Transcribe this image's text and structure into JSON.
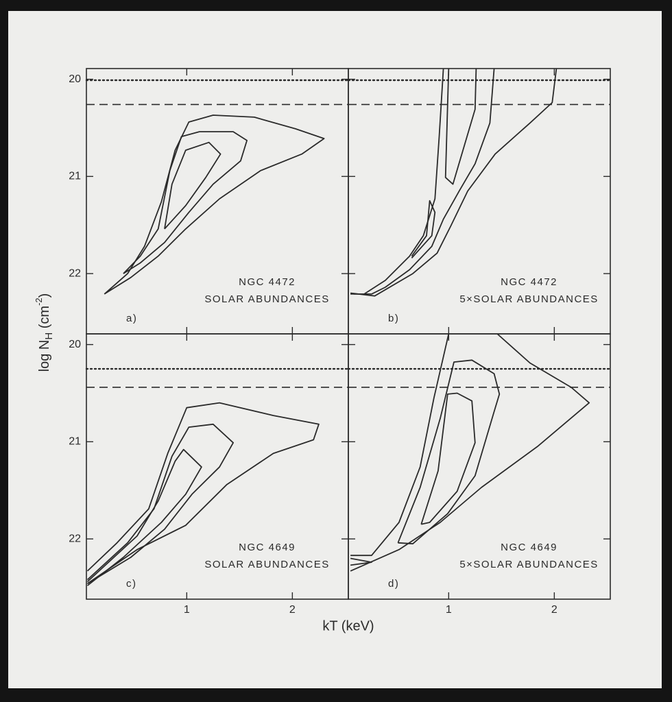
{
  "figure": {
    "xlabel": "kT (keV)",
    "ylabel": {
      "main": "log N",
      "sub": "H",
      "open": " (cm",
      "sup": "-2",
      "close": ")"
    }
  },
  "chart_data": [
    {
      "type": "contour",
      "panel_label": "a)",
      "annotation": [
        "NGC 4472",
        "SOLAR ABUNDANCES"
      ],
      "xlim": [
        0.05,
        2.53
      ],
      "ylim": [
        22.62,
        19.89
      ],
      "xticks": [
        1,
        2
      ],
      "yticks": [
        20,
        21,
        22
      ],
      "show_xtick_labels": false,
      "show_ytick_labels": true,
      "color": "#2a2a2a",
      "reference_lines": [
        {
          "y": 20.01,
          "style": "dotted"
        },
        {
          "y": 20.26,
          "style": "dashed"
        }
      ],
      "contours": [
        {
          "x": [
            0.22,
            0.44,
            0.6,
            0.76,
            0.89,
            1.02,
            1.25,
            1.64,
            2.03,
            2.3,
            2.09,
            1.7,
            1.31,
            0.99,
            0.73,
            0.47,
            0.22
          ],
          "y": [
            22.21,
            22.0,
            21.72,
            21.26,
            20.73,
            20.44,
            20.37,
            20.39,
            20.51,
            20.61,
            20.77,
            20.94,
            21.23,
            21.54,
            21.82,
            22.04,
            22.21
          ]
        },
        {
          "x": [
            0.4,
            0.56,
            0.73,
            0.84,
            0.95,
            1.12,
            1.44,
            1.57,
            1.51,
            1.25,
            1.02,
            0.79,
            0.56,
            0.4
          ],
          "y": [
            22.0,
            21.82,
            21.54,
            20.94,
            20.59,
            20.54,
            20.54,
            20.63,
            20.84,
            21.08,
            21.37,
            21.68,
            21.89,
            22.0
          ]
        },
        {
          "x": [
            0.79,
            0.86,
            0.99,
            1.21,
            1.32,
            1.18,
            0.99,
            0.79
          ],
          "y": [
            21.54,
            21.08,
            20.73,
            20.65,
            20.77,
            21.01,
            21.3,
            21.54
          ]
        }
      ]
    },
    {
      "type": "contour",
      "panel_label": "b)",
      "annotation": [
        "NGC 4472",
        "5×SOLAR ABUNDANCES"
      ],
      "xlim": [
        0.05,
        2.53
      ],
      "ylim": [
        22.62,
        19.89
      ],
      "xticks": [
        1,
        2
      ],
      "yticks": [
        20,
        21,
        22
      ],
      "show_xtick_labels": false,
      "show_ytick_labels": false,
      "color": "#2a2a2a",
      "reference_lines": [
        {
          "y": 20.01,
          "style": "dotted"
        },
        {
          "y": 20.26,
          "style": "dashed"
        }
      ],
      "contours": [
        {
          "x": [
            0.07,
            0.3,
            0.66,
            0.89,
            1.02,
            1.18,
            1.44,
            1.77,
            1.98,
            2.02
          ],
          "y": [
            22.2,
            22.23,
            22.0,
            21.79,
            21.51,
            21.15,
            20.77,
            20.45,
            20.24,
            19.89
          ]
        },
        {
          "x": [
            1.43,
            1.39,
            1.25,
            1.1,
            0.95,
            0.84,
            0.63,
            0.4,
            0.27,
            0.1
          ],
          "y": [
            19.89,
            20.45,
            20.87,
            21.15,
            21.44,
            21.72,
            21.96,
            22.14,
            22.21,
            22.21
          ]
        },
        {
          "x": [
            0.95,
            0.91,
            0.87,
            0.76,
            0.63,
            0.4,
            0.2,
            0.07
          ],
          "y": [
            19.89,
            20.59,
            21.23,
            21.61,
            21.82,
            22.07,
            22.21,
            22.21
          ]
        },
        {
          "x": [
            1.0,
            0.97,
            1.04,
            1.25,
            1.26
          ],
          "y": [
            19.89,
            21.01,
            21.08,
            20.31,
            19.89
          ]
        },
        {
          "x": [
            0.65,
            0.79,
            0.82,
            0.87,
            0.84,
            0.65
          ],
          "y": [
            21.82,
            21.61,
            21.25,
            21.37,
            21.61,
            21.84
          ]
        }
      ]
    },
    {
      "type": "contour",
      "panel_label": "c)",
      "annotation": [
        "NGC 4649",
        "SOLAR ABUNDANCES"
      ],
      "xlim": [
        0.05,
        2.53
      ],
      "ylim": [
        22.62,
        19.89
      ],
      "xticks": [
        1,
        2
      ],
      "yticks": [
        20,
        21,
        22
      ],
      "show_xtick_labels": true,
      "show_ytick_labels": true,
      "color": "#2a2a2a",
      "reference_lines": [
        {
          "y": 20.25,
          "style": "dotted"
        },
        {
          "y": 20.44,
          "style": "dashed"
        }
      ],
      "contours": [
        {
          "x": [
            0.06,
            0.34,
            0.64,
            0.82,
            1.0,
            1.31,
            1.82,
            2.25,
            2.2,
            1.82,
            1.38,
            0.99,
            0.53,
            0.06
          ],
          "y": [
            22.33,
            22.04,
            21.69,
            21.12,
            20.65,
            20.6,
            20.73,
            20.82,
            20.98,
            21.12,
            21.44,
            21.86,
            22.11,
            22.46
          ]
        },
        {
          "x": [
            0.06,
            0.44,
            0.69,
            0.86,
            1.02,
            1.25,
            1.44,
            1.31,
            1.05,
            0.79,
            0.47,
            0.06
          ],
          "y": [
            22.42,
            22.04,
            21.69,
            21.15,
            20.85,
            20.82,
            21.01,
            21.26,
            21.54,
            21.9,
            22.19,
            22.46
          ]
        },
        {
          "x": [
            0.06,
            0.53,
            0.73,
            0.89,
            0.97,
            1.14,
            0.99,
            0.76,
            0.4,
            0.06
          ],
          "y": [
            22.44,
            21.97,
            21.61,
            21.2,
            21.08,
            21.26,
            21.54,
            21.83,
            22.19,
            22.48
          ]
        }
      ]
    },
    {
      "type": "contour",
      "panel_label": "d)",
      "annotation": [
        "NGC 4649",
        "5×SOLAR ABUNDANCES"
      ],
      "xlim": [
        0.05,
        2.53
      ],
      "ylim": [
        22.62,
        19.89
      ],
      "xticks": [
        1,
        2
      ],
      "yticks": [
        20,
        21,
        22
      ],
      "show_xtick_labels": true,
      "show_ytick_labels": false,
      "color": "#2a2a2a",
      "reference_lines": [
        {
          "y": 20.25,
          "style": "dotted"
        },
        {
          "y": 20.44,
          "style": "dashed"
        }
      ],
      "contours": [
        {
          "x": [
            0.07,
            0.53,
            0.92,
            1.31,
            1.84,
            2.33,
            2.16,
            1.77,
            1.46
          ],
          "y": [
            22.33,
            22.11,
            21.83,
            21.47,
            21.05,
            20.6,
            20.44,
            20.19,
            19.89
          ]
        },
        {
          "x": [
            1.0,
            0.86,
            0.73,
            0.53,
            0.27,
            0.07
          ],
          "y": [
            19.89,
            20.55,
            21.26,
            21.83,
            22.17,
            22.17
          ]
        },
        {
          "x": [
            0.52,
            0.66,
            0.99,
            1.25,
            1.43,
            1.48,
            1.43,
            1.22,
            1.05,
            0.92,
            0.73,
            0.52
          ],
          "y": [
            22.04,
            22.05,
            21.74,
            21.35,
            20.69,
            20.51,
            20.3,
            20.16,
            20.18,
            20.76,
            21.47,
            22.04
          ]
        },
        {
          "x": [
            0.74,
            0.82,
            1.08,
            1.25,
            1.22,
            1.08,
            0.99,
            0.9,
            0.74
          ],
          "y": [
            21.85,
            21.83,
            21.51,
            21.01,
            20.58,
            20.5,
            20.51,
            21.3,
            21.85
          ]
        },
        {
          "x": [
            0.07,
            0.27,
            0.07
          ],
          "y": [
            22.2,
            22.24,
            22.27
          ]
        }
      ]
    }
  ]
}
